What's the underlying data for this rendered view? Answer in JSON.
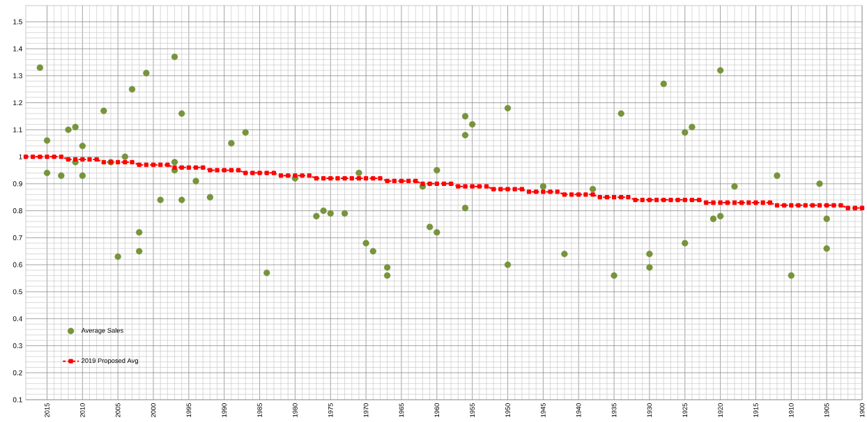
{
  "chart_data": {
    "type": "scatter",
    "xlim": [
      2018,
      1900
    ],
    "ylim": [
      0.1,
      1.56
    ],
    "xticks": [
      2015,
      2010,
      2005,
      2000,
      1995,
      1990,
      1985,
      1980,
      1975,
      1970,
      1965,
      1960,
      1955,
      1950,
      1945,
      1940,
      1935,
      1930,
      1925,
      1920,
      1915,
      1910,
      1905,
      1900
    ],
    "yticks": [
      0.1,
      0.2,
      0.3,
      0.4,
      0.5,
      0.6,
      0.7,
      0.8,
      0.9,
      1,
      1.1,
      1.2,
      1.3,
      1.4,
      1.5
    ],
    "grid": true,
    "legend": "bottom left",
    "series": [
      {
        "name": "Average Sales",
        "marker": "circle",
        "color": "#77933c",
        "x": [
          2016,
          2015,
          2015,
          2013,
          2012,
          2011,
          2011,
          2010,
          2010,
          2007,
          2006,
          2005,
          2004,
          2003,
          2002,
          2002,
          2001,
          1999,
          1997,
          1997,
          1997,
          1996,
          1996,
          1994,
          1992,
          1989,
          1987,
          1984,
          1980,
          1977,
          1976,
          1975,
          1973,
          1971,
          1970,
          1969,
          1967,
          1967,
          1962,
          1961,
          1960,
          1960,
          1956,
          1956,
          1956,
          1955,
          1950,
          1950,
          1945,
          1942,
          1938,
          1935,
          1934,
          1930,
          1930,
          1928,
          1925,
          1925,
          1924,
          1921,
          1920,
          1920,
          1918,
          1912,
          1910,
          1906,
          1905,
          1905
        ],
        "values": [
          1.33,
          1.06,
          0.94,
          0.93,
          1.1,
          1.11,
          0.98,
          1.04,
          0.93,
          1.17,
          0.98,
          0.63,
          1.0,
          1.25,
          0.72,
          0.65,
          1.31,
          0.84,
          1.37,
          0.98,
          0.95,
          1.16,
          0.84,
          0.91,
          0.85,
          1.05,
          1.09,
          0.57,
          0.92,
          0.78,
          0.8,
          0.79,
          0.79,
          0.94,
          0.68,
          0.65,
          0.59,
          0.56,
          0.89,
          0.74,
          0.95,
          0.72,
          1.15,
          1.08,
          0.81,
          1.12,
          1.18,
          0.6,
          0.89,
          0.64,
          0.88,
          0.56,
          1.16,
          0.64,
          0.59,
          1.27,
          1.09,
          0.68,
          1.11,
          0.77,
          1.32,
          0.78,
          0.89,
          0.93,
          0.56,
          0.9,
          0.77,
          0.66
        ]
      },
      {
        "name": "2019 Proposed Avg",
        "type": "line",
        "marker": "square",
        "line_style": "dashed",
        "color": "#ff0000",
        "x": [
          2018,
          2017,
          2016,
          2015,
          2014,
          2013,
          2012,
          2011,
          2010,
          2009,
          2008,
          2007,
          2006,
          2005,
          2004,
          2003,
          2002,
          2001,
          2000,
          1999,
          1998,
          1997,
          1996,
          1995,
          1994,
          1993,
          1992,
          1991,
          1990,
          1989,
          1988,
          1987,
          1986,
          1985,
          1984,
          1983,
          1982,
          1981,
          1980,
          1979,
          1978,
          1977,
          1976,
          1975,
          1974,
          1973,
          1972,
          1971,
          1970,
          1969,
          1968,
          1967,
          1966,
          1965,
          1964,
          1963,
          1962,
          1961,
          1960,
          1959,
          1958,
          1957,
          1956,
          1955,
          1954,
          1953,
          1952,
          1951,
          1950,
          1949,
          1948,
          1947,
          1946,
          1945,
          1944,
          1943,
          1942,
          1941,
          1940,
          1939,
          1938,
          1937,
          1936,
          1935,
          1934,
          1933,
          1932,
          1931,
          1930,
          1929,
          1928,
          1927,
          1926,
          1925,
          1924,
          1923,
          1922,
          1921,
          1920,
          1919,
          1918,
          1917,
          1916,
          1915,
          1914,
          1913,
          1912,
          1911,
          1910,
          1909,
          1908,
          1907,
          1906,
          1905,
          1904,
          1903,
          1902,
          1901,
          1900
        ],
        "values": [
          1,
          1,
          1,
          1,
          1,
          1,
          0.99,
          0.99,
          0.99,
          0.99,
          0.99,
          0.98,
          0.98,
          0.98,
          0.98,
          0.98,
          0.97,
          0.97,
          0.97,
          0.97,
          0.97,
          0.96,
          0.96,
          0.96,
          0.96,
          0.96,
          0.95,
          0.95,
          0.95,
          0.95,
          0.95,
          0.94,
          0.94,
          0.94,
          0.94,
          0.94,
          0.93,
          0.93,
          0.93,
          0.93,
          0.93,
          0.92,
          0.92,
          0.92,
          0.92,
          0.92,
          0.92,
          0.92,
          0.92,
          0.92,
          0.92,
          0.91,
          0.91,
          0.91,
          0.91,
          0.91,
          0.9,
          0.9,
          0.9,
          0.9,
          0.9,
          0.89,
          0.89,
          0.89,
          0.89,
          0.89,
          0.88,
          0.88,
          0.88,
          0.88,
          0.88,
          0.87,
          0.87,
          0.87,
          0.87,
          0.87,
          0.86,
          0.86,
          0.86,
          0.86,
          0.86,
          0.85,
          0.85,
          0.85,
          0.85,
          0.85,
          0.84,
          0.84,
          0.84,
          0.84,
          0.84,
          0.84,
          0.84,
          0.84,
          0.84,
          0.84,
          0.83,
          0.83,
          0.83,
          0.83,
          0.83,
          0.83,
          0.83,
          0.83,
          0.83,
          0.83,
          0.82,
          0.82,
          0.82,
          0.82,
          0.82,
          0.82,
          0.82,
          0.82,
          0.82,
          0.82,
          0.81,
          0.81,
          0.81
        ]
      }
    ]
  }
}
